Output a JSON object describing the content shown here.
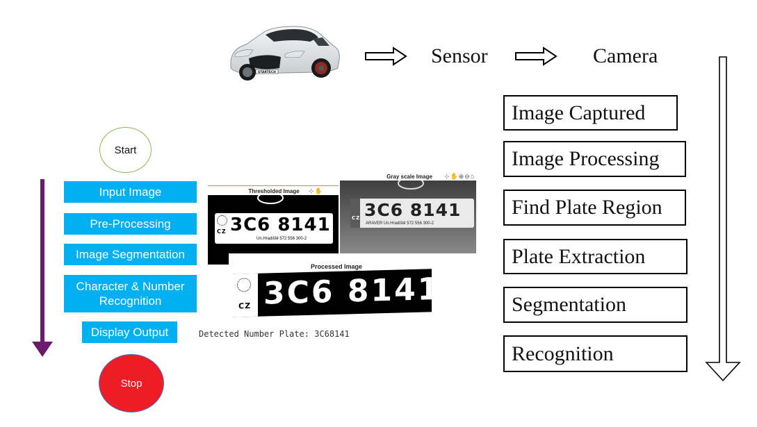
{
  "top_chain": {
    "sensor_label": "Sensor",
    "camera_label": "Camera"
  },
  "car": {
    "badge": "STARTECH"
  },
  "stages": [
    "Image Captured",
    "Image Processing",
    "Find Plate Region",
    "Plate Extraction",
    "Segmentation",
    "Recognition"
  ],
  "flow": {
    "start_label": "Start",
    "steps": [
      "Input Image",
      "Pre-Processing",
      "Image Segmentation",
      "Character & Number Recognition",
      "Display Output"
    ],
    "stop_label": "Stop"
  },
  "plates": {
    "thresholded": {
      "title": "Thresholded Image",
      "plate_text": "3C6 8141",
      "country": "CZ",
      "footer": "Un.Hradiště  572 556 300-2"
    },
    "grayscale": {
      "title": "Gray scale Image",
      "plate_text": "3C6 8141",
      "country": "CZ",
      "footer": "ARAVER  Un.Hradiště  572 556 300-2"
    },
    "processed": {
      "title": "Processed Image",
      "plate_text": "3C6 8141",
      "country": "CZ"
    }
  },
  "result": {
    "text": "Detected Number Plate: 3C68141"
  },
  "colors": {
    "flow_box": "#00b0f0",
    "start_border": "#8db657",
    "stop_fill": "#ee1c24",
    "stop_border": "#4472c4",
    "left_arrow": "#6a1b6e"
  }
}
